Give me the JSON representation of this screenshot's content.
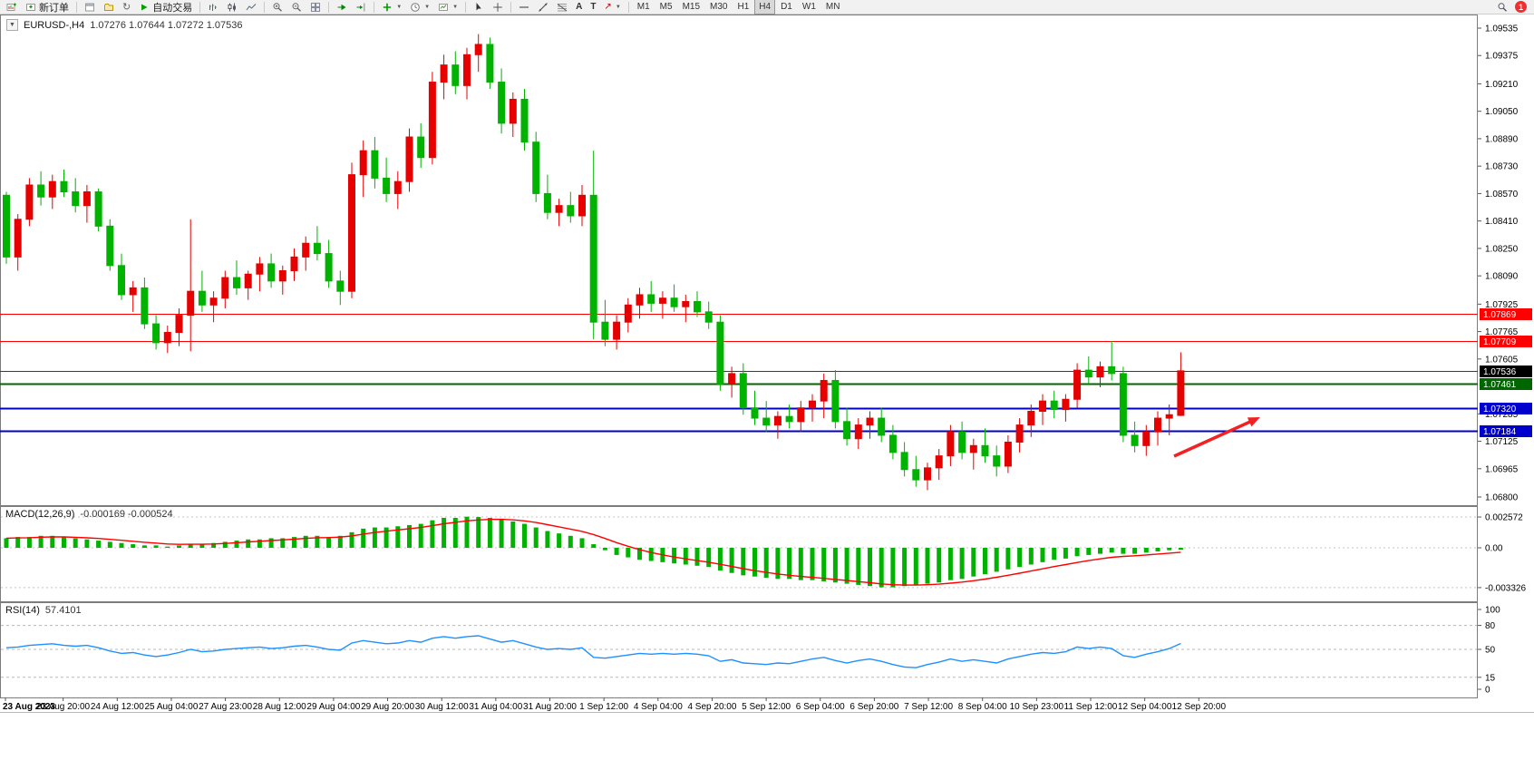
{
  "toolbar": {
    "new_order_label": "新订单",
    "autotrading_label": "自动交易",
    "text_tool_label": "A",
    "label_tool_label": "T",
    "timeframes": [
      "M1",
      "M5",
      "M15",
      "M30",
      "H1",
      "H4",
      "D1",
      "W1",
      "MN"
    ],
    "active_timeframe": "H4",
    "notification_badge": "1"
  },
  "chart_header": {
    "symbol_period": "EURUSD-,H4",
    "ohlc": "1.07276 1.07644 1.07272 1.07536"
  },
  "indicators": {
    "macd_title": "MACD(12,26,9)",
    "macd_values": "-0.000169 -0.000524",
    "rsi_title": "RSI(14)",
    "rsi_value": "57.4101"
  },
  "colors": {
    "bull": "#e60000",
    "bear": "#00b300",
    "macd_hist": "#00b300",
    "macd_signal": "#ff0000",
    "rsi_line": "#1e90ff",
    "panel_border": "#7d7d7d",
    "axis_text": "#000000",
    "grid_dash": "#c4c4c4"
  },
  "chart_data": {
    "type": "candlestick",
    "symbol": "EURUSD-",
    "period": "H4",
    "current_ohlc": {
      "open": "1.07276",
      "high": "1.07644",
      "low": "1.07272",
      "close": "1.07536"
    },
    "price_ticks": [
      "1.09535",
      "1.09375",
      "1.09210",
      "1.09050",
      "1.08890",
      "1.08730",
      "1.08570",
      "1.08410",
      "1.08250",
      "1.08090",
      "1.07925",
      "1.07765",
      "1.07605",
      "1.07285",
      "1.07125",
      "1.06965",
      "1.06800"
    ],
    "price_range": {
      "max": 1.09535,
      "min": 1.068
    },
    "levels": [
      {
        "price": 1.07869,
        "label": "1.07869",
        "color": "#ff0000",
        "lw": 1,
        "name": "resistance-line-1-07869"
      },
      {
        "price": 1.07709,
        "label": "1.07709",
        "color": "#ff0000",
        "lw": 1,
        "name": "resistance-line-1-07709"
      },
      {
        "price": 1.07536,
        "label": "1.07536",
        "color": "#3a3a3a",
        "badge": "#000000",
        "lw": 1,
        "name": "current-price-line"
      },
      {
        "price": 1.07461,
        "label": "1.07461",
        "color": "#006600",
        "lw": 2,
        "name": "level-line-1-07461"
      },
      {
        "price": 1.0732,
        "label": "1.07320",
        "color": "#0000cc",
        "lw": 2,
        "name": "support-line-1-07320"
      },
      {
        "price": 1.07184,
        "label": "1.07184",
        "color": "#0000cc",
        "lw": 2,
        "name": "support-line-1-07184"
      }
    ],
    "candles": [
      [
        1.0856,
        1.0858,
        1.0816,
        1.082
      ],
      [
        1.082,
        1.0845,
        1.0812,
        1.0842
      ],
      [
        1.0842,
        1.0866,
        1.0838,
        1.0862
      ],
      [
        1.0862,
        1.087,
        1.085,
        1.0855
      ],
      [
        1.0855,
        1.0868,
        1.0848,
        1.0864
      ],
      [
        1.0864,
        1.0871,
        1.0855,
        1.0858
      ],
      [
        1.0858,
        1.0866,
        1.0846,
        1.085
      ],
      [
        1.085,
        1.0862,
        1.084,
        1.0858
      ],
      [
        1.0858,
        1.086,
        1.0835,
        1.0838
      ],
      [
        1.0838,
        1.0842,
        1.0812,
        1.0815
      ],
      [
        1.0815,
        1.0822,
        1.0795,
        1.0798
      ],
      [
        1.0798,
        1.0806,
        1.0788,
        1.0802
      ],
      [
        1.0802,
        1.0808,
        1.0778,
        1.0781
      ],
      [
        1.0781,
        1.0786,
        1.0766,
        1.077
      ],
      [
        1.077,
        1.078,
        1.0764,
        1.0776
      ],
      [
        1.0776,
        1.079,
        1.0768,
        1.0786
      ],
      [
        1.0786,
        1.0842,
        1.0765,
        1.08
      ],
      [
        1.08,
        1.0812,
        1.0788,
        1.0792
      ],
      [
        1.0792,
        1.08,
        1.0782,
        1.0796
      ],
      [
        1.0796,
        1.0812,
        1.079,
        1.0808
      ],
      [
        1.0808,
        1.0818,
        1.0798,
        1.0802
      ],
      [
        1.0802,
        1.0812,
        1.0795,
        1.081
      ],
      [
        1.081,
        1.082,
        1.08,
        1.0816
      ],
      [
        1.0816,
        1.0822,
        1.0802,
        1.0806
      ],
      [
        1.0806,
        1.0815,
        1.0798,
        1.0812
      ],
      [
        1.0812,
        1.0825,
        1.0806,
        1.082
      ],
      [
        1.082,
        1.0832,
        1.0812,
        1.0828
      ],
      [
        1.0828,
        1.0838,
        1.0818,
        1.0822
      ],
      [
        1.0822,
        1.083,
        1.0802,
        1.0806
      ],
      [
        1.0806,
        1.0812,
        1.0792,
        1.08
      ],
      [
        1.08,
        1.0875,
        1.0796,
        1.0868
      ],
      [
        1.0868,
        1.0888,
        1.0855,
        1.0882
      ],
      [
        1.0882,
        1.089,
        1.086,
        1.0866
      ],
      [
        1.0866,
        1.0878,
        1.0852,
        1.0857
      ],
      [
        1.0857,
        1.087,
        1.0848,
        1.0864
      ],
      [
        1.0864,
        1.0895,
        1.0858,
        1.089
      ],
      [
        1.089,
        1.0898,
        1.0872,
        1.0878
      ],
      [
        1.0878,
        1.0928,
        1.0874,
        1.0922
      ],
      [
        1.0922,
        1.0938,
        1.0912,
        1.0932
      ],
      [
        1.0932,
        1.094,
        1.0915,
        1.092
      ],
      [
        1.092,
        1.0942,
        1.0912,
        1.0938
      ],
      [
        1.0938,
        1.095,
        1.0928,
        1.0944
      ],
      [
        1.0944,
        1.0948,
        1.0918,
        1.0922
      ],
      [
        1.0922,
        1.093,
        1.0892,
        1.0898
      ],
      [
        1.0898,
        1.0916,
        1.089,
        1.0912
      ],
      [
        1.0912,
        1.0918,
        1.0882,
        1.0887
      ],
      [
        1.0887,
        1.0893,
        1.0852,
        1.0857
      ],
      [
        1.0857,
        1.0868,
        1.0842,
        1.0846
      ],
      [
        1.0846,
        1.0854,
        1.0838,
        1.085
      ],
      [
        1.085,
        1.0858,
        1.084,
        1.0844
      ],
      [
        1.0844,
        1.0862,
        1.0838,
        1.0856
      ],
      [
        1.0856,
        1.0882,
        1.0772,
        1.0782
      ],
      [
        1.0782,
        1.0795,
        1.0768,
        1.0772
      ],
      [
        1.0772,
        1.0786,
        1.0766,
        1.0782
      ],
      [
        1.0782,
        1.0796,
        1.0776,
        1.0792
      ],
      [
        1.0792,
        1.0802,
        1.0784,
        1.0798
      ],
      [
        1.0798,
        1.0806,
        1.0788,
        1.0793
      ],
      [
        1.0793,
        1.08,
        1.0784,
        1.0796
      ],
      [
        1.0796,
        1.0804,
        1.0788,
        1.0791
      ],
      [
        1.0791,
        1.0798,
        1.0782,
        1.0794
      ],
      [
        1.0794,
        1.08,
        1.0785,
        1.0788
      ],
      [
        1.0788,
        1.0794,
        1.0778,
        1.0782
      ],
      [
        1.0782,
        1.0786,
        1.0742,
        1.0746
      ],
      [
        1.0746,
        1.0756,
        1.0738,
        1.0752
      ],
      [
        1.0752,
        1.0758,
        1.0728,
        1.0732
      ],
      [
        1.0732,
        1.0742,
        1.0722,
        1.0726
      ],
      [
        1.0726,
        1.0736,
        1.0718,
        1.0722
      ],
      [
        1.0722,
        1.073,
        1.0714,
        1.0727
      ],
      [
        1.0727,
        1.0734,
        1.072,
        1.0724
      ],
      [
        1.0724,
        1.0736,
        1.0718,
        1.0732
      ],
      [
        1.0732,
        1.074,
        1.0724,
        1.0736
      ],
      [
        1.0736,
        1.0752,
        1.0726,
        1.0748
      ],
      [
        1.0748,
        1.0754,
        1.072,
        1.0724
      ],
      [
        1.0724,
        1.0732,
        1.071,
        1.0714
      ],
      [
        1.0714,
        1.0726,
        1.0708,
        1.0722
      ],
      [
        1.0722,
        1.073,
        1.0714,
        1.0726
      ],
      [
        1.0726,
        1.0732,
        1.0712,
        1.0716
      ],
      [
        1.0716,
        1.0722,
        1.0702,
        1.0706
      ],
      [
        1.0706,
        1.0712,
        1.0692,
        1.0696
      ],
      [
        1.0696,
        1.0704,
        1.0686,
        1.069
      ],
      [
        1.069,
        1.07,
        1.0684,
        1.0697
      ],
      [
        1.0697,
        1.0708,
        1.069,
        1.0704
      ],
      [
        1.0704,
        1.0722,
        1.0698,
        1.0718
      ],
      [
        1.0718,
        1.0724,
        1.0702,
        1.0706
      ],
      [
        1.0706,
        1.0714,
        1.0696,
        1.071
      ],
      [
        1.071,
        1.072,
        1.07,
        1.0704
      ],
      [
        1.0704,
        1.071,
        1.0692,
        1.0698
      ],
      [
        1.0698,
        1.0716,
        1.0694,
        1.0712
      ],
      [
        1.0712,
        1.0726,
        1.0706,
        1.0722
      ],
      [
        1.0722,
        1.0734,
        1.0715,
        1.073
      ],
      [
        1.073,
        1.074,
        1.0722,
        1.0736
      ],
      [
        1.0736,
        1.0742,
        1.0726,
        1.0731
      ],
      [
        1.0731,
        1.074,
        1.0724,
        1.0737
      ],
      [
        1.0737,
        1.0758,
        1.0732,
        1.0754
      ],
      [
        1.0754,
        1.0762,
        1.0746,
        1.075
      ],
      [
        1.075,
        1.0759,
        1.0744,
        1.0756
      ],
      [
        1.0756,
        1.0771,
        1.0748,
        1.0752
      ],
      [
        1.0752,
        1.0756,
        1.0712,
        1.0716
      ],
      [
        1.0716,
        1.0724,
        1.0706,
        1.071
      ],
      [
        1.071,
        1.0722,
        1.0704,
        1.0718
      ],
      [
        1.0718,
        1.073,
        1.071,
        1.0726
      ],
      [
        1.0726,
        1.0734,
        1.0716,
        1.0728
      ],
      [
        1.07276,
        1.07644,
        1.07272,
        1.07536
      ]
    ],
    "x_labels": [
      "23 Aug 2023",
      "23 Aug 20:00",
      "24 Aug 12:00",
      "25 Aug 04:00",
      "27 Aug 23:00",
      "28 Aug 12:00",
      "29 Aug 04:00",
      "29 Aug 20:00",
      "30 Aug 12:00",
      "31 Aug 04:00",
      "31 Aug 20:00",
      "1 Sep 12:00",
      "4 Sep 04:00",
      "4 Sep 20:00",
      "5 Sep 12:00",
      "6 Sep 04:00",
      "6 Sep 20:00",
      "7 Sep 12:00",
      "8 Sep 04:00",
      "10 Sep 23:00",
      "11 Sep 12:00",
      "12 Sep 04:00",
      "12 Sep 20:00"
    ],
    "macd": {
      "params": "12,26,9",
      "scale_labels": [
        "0.002572",
        "0.00",
        "-0.003326"
      ],
      "histogram": [
        0.0008,
        0.0009,
        0.0009,
        0.001,
        0.001,
        0.0009,
        0.0008,
        0.0007,
        0.0006,
        0.0005,
        0.0004,
        0.0003,
        0.0002,
        0.0002,
        0.0001,
        0.0002,
        0.0003,
        0.0003,
        0.0004,
        0.0005,
        0.0006,
        0.0007,
        0.0007,
        0.0008,
        0.0008,
        0.0009,
        0.001,
        0.001,
        0.0009,
        0.001,
        0.0013,
        0.0016,
        0.0017,
        0.0017,
        0.0018,
        0.0019,
        0.002,
        0.0023,
        0.0025,
        0.0025,
        0.0026,
        0.00257,
        0.0025,
        0.0024,
        0.0022,
        0.002,
        0.0017,
        0.0014,
        0.0012,
        0.001,
        0.0008,
        0.0003,
        -0.0002,
        -0.0006,
        -0.0008,
        -0.001,
        -0.0011,
        -0.0012,
        -0.0013,
        -0.0014,
        -0.0015,
        -0.0016,
        -0.0019,
        -0.0021,
        -0.0023,
        -0.0024,
        -0.0025,
        -0.0026,
        -0.0026,
        -0.0027,
        -0.0027,
        -0.0028,
        -0.0029,
        -0.003,
        -0.0031,
        -0.0032,
        -0.0033,
        -0.0033,
        -0.0032,
        -0.0031,
        -0.003,
        -0.0029,
        -0.0027,
        -0.0026,
        -0.0024,
        -0.0022,
        -0.002,
        -0.0018,
        -0.0016,
        -0.0014,
        -0.0012,
        -0.001,
        -0.0009,
        -0.0007,
        -0.0006,
        -0.0005,
        -0.0004,
        -0.0005,
        -0.0005,
        -0.0004,
        -0.0003,
        -0.0002,
        -0.000169
      ]
    },
    "rsi": {
      "period": 14,
      "scale_labels": [
        "100",
        "80",
        "50",
        "15",
        "0"
      ],
      "dashed_levels": [
        80,
        50,
        15
      ],
      "values": [
        52,
        53,
        55,
        56,
        57,
        55,
        54,
        55,
        52,
        48,
        45,
        46,
        43,
        41,
        43,
        46,
        50,
        47,
        48,
        50,
        51,
        52,
        53,
        51,
        52,
        54,
        55,
        53,
        50,
        49,
        58,
        61,
        59,
        57,
        58,
        61,
        59,
        64,
        66,
        64,
        66,
        67,
        63,
        59,
        61,
        57,
        53,
        50,
        51,
        50,
        52,
        40,
        39,
        41,
        43,
        45,
        44,
        45,
        44,
        45,
        44,
        42,
        35,
        37,
        33,
        32,
        31,
        33,
        32,
        35,
        38,
        40,
        36,
        33,
        36,
        38,
        35,
        31,
        28,
        27,
        31,
        34,
        38,
        35,
        37,
        35,
        33,
        38,
        41,
        44,
        46,
        45,
        47,
        53,
        51,
        53,
        51,
        42,
        40,
        44,
        47,
        51,
        57.41
      ]
    },
    "annotation_arrow": {
      "from": [
        1295,
        487
      ],
      "to": [
        1390,
        444
      ],
      "color": "#f52020"
    }
  }
}
